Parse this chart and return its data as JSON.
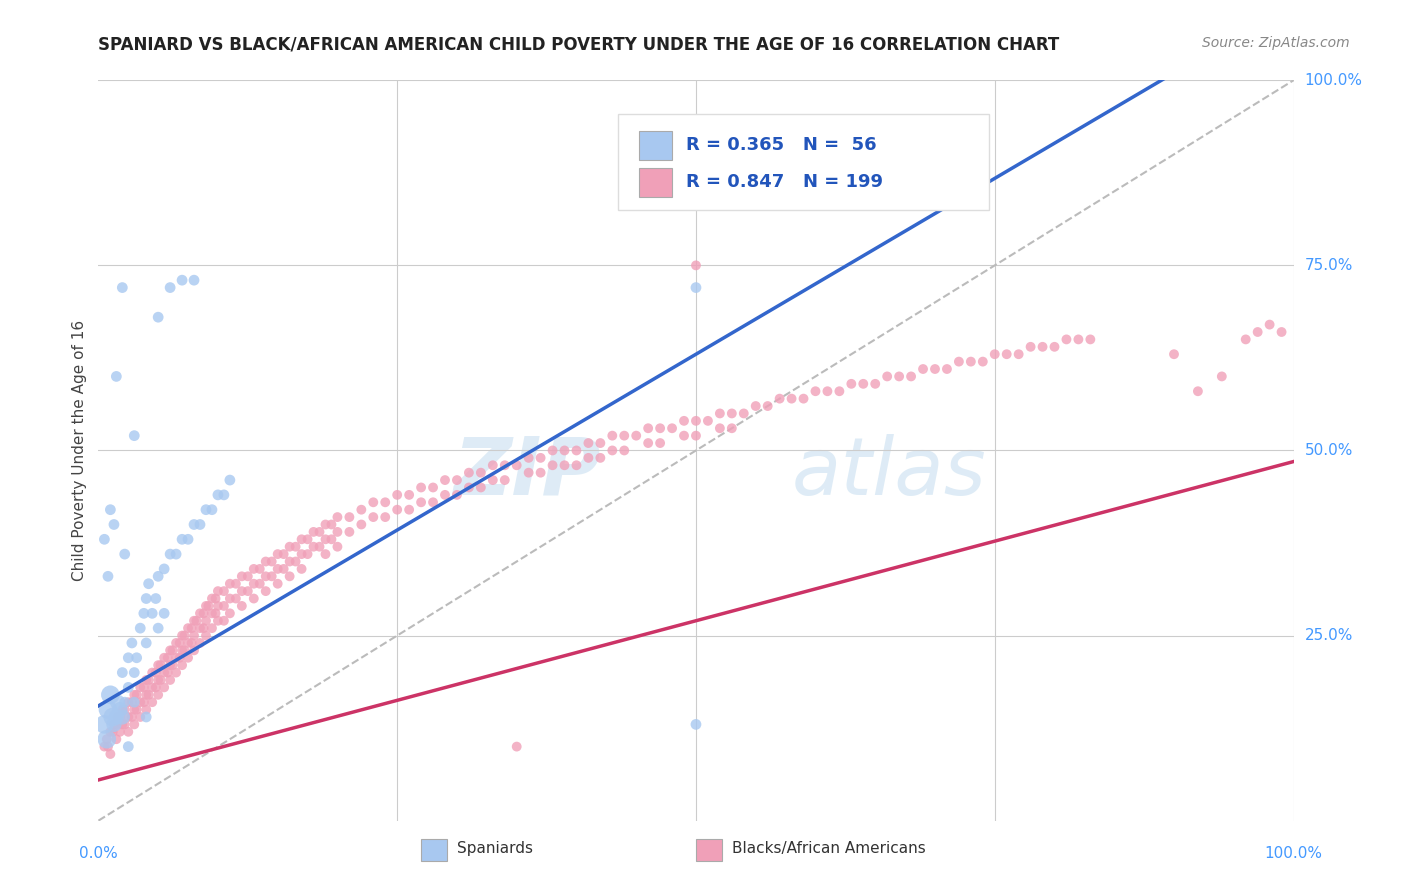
{
  "title": "SPANIARD VS BLACK/AFRICAN AMERICAN CHILD POVERTY UNDER THE AGE OF 16 CORRELATION CHART",
  "source": "Source: ZipAtlas.com",
  "ylabel": "Child Poverty Under the Age of 16",
  "ytick_labels": [
    "25.0%",
    "50.0%",
    "75.0%",
    "100.0%"
  ],
  "ytick_values": [
    0.25,
    0.5,
    0.75,
    1.0
  ],
  "R_spaniard": 0.365,
  "N_spaniard": 56,
  "R_black": 0.847,
  "N_black": 199,
  "watermark_zip": "ZIP",
  "watermark_atlas": "atlas",
  "blue_color": "#a8c8f0",
  "pink_color": "#f0a0b8",
  "blue_line_color": "#3366cc",
  "pink_line_color": "#cc3366",
  "legend_blue_text": "Spaniards",
  "legend_pink_text": "Blacks/African Americans",
  "blue_intercept": 0.155,
  "blue_slope": 0.95,
  "pink_intercept": 0.055,
  "pink_slope": 0.43,
  "spaniard_points": [
    [
      0.005,
      0.13
    ],
    [
      0.007,
      0.11
    ],
    [
      0.008,
      0.15
    ],
    [
      0.01,
      0.17
    ],
    [
      0.012,
      0.14
    ],
    [
      0.013,
      0.13
    ],
    [
      0.015,
      0.14
    ],
    [
      0.016,
      0.16
    ],
    [
      0.018,
      0.15
    ],
    [
      0.02,
      0.14
    ],
    [
      0.02,
      0.2
    ],
    [
      0.022,
      0.16
    ],
    [
      0.025,
      0.18
    ],
    [
      0.025,
      0.22
    ],
    [
      0.028,
      0.24
    ],
    [
      0.03,
      0.2
    ],
    [
      0.03,
      0.16
    ],
    [
      0.032,
      0.22
    ],
    [
      0.035,
      0.26
    ],
    [
      0.038,
      0.28
    ],
    [
      0.04,
      0.3
    ],
    [
      0.04,
      0.24
    ],
    [
      0.042,
      0.32
    ],
    [
      0.045,
      0.28
    ],
    [
      0.048,
      0.3
    ],
    [
      0.05,
      0.33
    ],
    [
      0.05,
      0.26
    ],
    [
      0.055,
      0.34
    ],
    [
      0.055,
      0.28
    ],
    [
      0.06,
      0.36
    ],
    [
      0.065,
      0.36
    ],
    [
      0.07,
      0.38
    ],
    [
      0.075,
      0.38
    ],
    [
      0.08,
      0.4
    ],
    [
      0.085,
      0.4
    ],
    [
      0.09,
      0.42
    ],
    [
      0.095,
      0.42
    ],
    [
      0.1,
      0.44
    ],
    [
      0.105,
      0.44
    ],
    [
      0.11,
      0.46
    ],
    [
      0.015,
      0.6
    ],
    [
      0.03,
      0.52
    ],
    [
      0.05,
      0.68
    ],
    [
      0.02,
      0.72
    ],
    [
      0.06,
      0.72
    ],
    [
      0.07,
      0.73
    ],
    [
      0.08,
      0.73
    ],
    [
      0.005,
      0.38
    ],
    [
      0.01,
      0.42
    ],
    [
      0.013,
      0.4
    ],
    [
      0.022,
      0.36
    ],
    [
      0.008,
      0.33
    ],
    [
      0.04,
      0.14
    ],
    [
      0.025,
      0.1
    ],
    [
      0.5,
      0.72
    ],
    [
      0.5,
      0.13
    ]
  ],
  "black_points": [
    [
      0.005,
      0.1
    ],
    [
      0.007,
      0.11
    ],
    [
      0.008,
      0.1
    ],
    [
      0.01,
      0.12
    ],
    [
      0.01,
      0.09
    ],
    [
      0.012,
      0.12
    ],
    [
      0.013,
      0.13
    ],
    [
      0.015,
      0.13
    ],
    [
      0.015,
      0.11
    ],
    [
      0.016,
      0.14
    ],
    [
      0.018,
      0.14
    ],
    [
      0.018,
      0.12
    ],
    [
      0.02,
      0.15
    ],
    [
      0.02,
      0.13
    ],
    [
      0.022,
      0.15
    ],
    [
      0.022,
      0.13
    ],
    [
      0.025,
      0.16
    ],
    [
      0.025,
      0.14
    ],
    [
      0.025,
      0.12
    ],
    [
      0.028,
      0.16
    ],
    [
      0.028,
      0.14
    ],
    [
      0.03,
      0.17
    ],
    [
      0.03,
      0.15
    ],
    [
      0.03,
      0.13
    ],
    [
      0.032,
      0.17
    ],
    [
      0.032,
      0.15
    ],
    [
      0.035,
      0.18
    ],
    [
      0.035,
      0.16
    ],
    [
      0.035,
      0.14
    ],
    [
      0.038,
      0.18
    ],
    [
      0.038,
      0.16
    ],
    [
      0.04,
      0.19
    ],
    [
      0.04,
      0.17
    ],
    [
      0.04,
      0.15
    ],
    [
      0.042,
      0.19
    ],
    [
      0.042,
      0.17
    ],
    [
      0.045,
      0.2
    ],
    [
      0.045,
      0.18
    ],
    [
      0.045,
      0.16
    ],
    [
      0.048,
      0.2
    ],
    [
      0.048,
      0.18
    ],
    [
      0.05,
      0.21
    ],
    [
      0.05,
      0.19
    ],
    [
      0.05,
      0.17
    ],
    [
      0.052,
      0.21
    ],
    [
      0.052,
      0.19
    ],
    [
      0.055,
      0.22
    ],
    [
      0.055,
      0.2
    ],
    [
      0.055,
      0.18
    ],
    [
      0.058,
      0.22
    ],
    [
      0.058,
      0.2
    ],
    [
      0.06,
      0.23
    ],
    [
      0.06,
      0.21
    ],
    [
      0.06,
      0.19
    ],
    [
      0.062,
      0.23
    ],
    [
      0.062,
      0.21
    ],
    [
      0.065,
      0.24
    ],
    [
      0.065,
      0.22
    ],
    [
      0.065,
      0.2
    ],
    [
      0.068,
      0.24
    ],
    [
      0.068,
      0.22
    ],
    [
      0.07,
      0.25
    ],
    [
      0.07,
      0.23
    ],
    [
      0.07,
      0.21
    ],
    [
      0.072,
      0.25
    ],
    [
      0.072,
      0.23
    ],
    [
      0.075,
      0.26
    ],
    [
      0.075,
      0.24
    ],
    [
      0.075,
      0.22
    ],
    [
      0.078,
      0.26
    ],
    [
      0.078,
      0.24
    ],
    [
      0.08,
      0.27
    ],
    [
      0.08,
      0.25
    ],
    [
      0.08,
      0.23
    ],
    [
      0.082,
      0.27
    ],
    [
      0.085,
      0.28
    ],
    [
      0.085,
      0.26
    ],
    [
      0.085,
      0.24
    ],
    [
      0.088,
      0.28
    ],
    [
      0.088,
      0.26
    ],
    [
      0.09,
      0.29
    ],
    [
      0.09,
      0.27
    ],
    [
      0.09,
      0.25
    ],
    [
      0.092,
      0.29
    ],
    [
      0.095,
      0.3
    ],
    [
      0.095,
      0.28
    ],
    [
      0.095,
      0.26
    ],
    [
      0.098,
      0.3
    ],
    [
      0.098,
      0.28
    ],
    [
      0.1,
      0.31
    ],
    [
      0.1,
      0.29
    ],
    [
      0.1,
      0.27
    ],
    [
      0.105,
      0.31
    ],
    [
      0.105,
      0.29
    ],
    [
      0.105,
      0.27
    ],
    [
      0.11,
      0.32
    ],
    [
      0.11,
      0.3
    ],
    [
      0.11,
      0.28
    ],
    [
      0.115,
      0.32
    ],
    [
      0.115,
      0.3
    ],
    [
      0.12,
      0.33
    ],
    [
      0.12,
      0.31
    ],
    [
      0.12,
      0.29
    ],
    [
      0.125,
      0.33
    ],
    [
      0.125,
      0.31
    ],
    [
      0.13,
      0.34
    ],
    [
      0.13,
      0.32
    ],
    [
      0.13,
      0.3
    ],
    [
      0.135,
      0.34
    ],
    [
      0.135,
      0.32
    ],
    [
      0.14,
      0.35
    ],
    [
      0.14,
      0.33
    ],
    [
      0.14,
      0.31
    ],
    [
      0.145,
      0.35
    ],
    [
      0.145,
      0.33
    ],
    [
      0.15,
      0.36
    ],
    [
      0.15,
      0.34
    ],
    [
      0.15,
      0.32
    ],
    [
      0.155,
      0.36
    ],
    [
      0.155,
      0.34
    ],
    [
      0.16,
      0.37
    ],
    [
      0.16,
      0.35
    ],
    [
      0.16,
      0.33
    ],
    [
      0.165,
      0.37
    ],
    [
      0.165,
      0.35
    ],
    [
      0.17,
      0.38
    ],
    [
      0.17,
      0.36
    ],
    [
      0.17,
      0.34
    ],
    [
      0.175,
      0.38
    ],
    [
      0.175,
      0.36
    ],
    [
      0.18,
      0.39
    ],
    [
      0.18,
      0.37
    ],
    [
      0.185,
      0.39
    ],
    [
      0.185,
      0.37
    ],
    [
      0.19,
      0.4
    ],
    [
      0.19,
      0.38
    ],
    [
      0.19,
      0.36
    ],
    [
      0.195,
      0.4
    ],
    [
      0.195,
      0.38
    ],
    [
      0.2,
      0.41
    ],
    [
      0.2,
      0.39
    ],
    [
      0.2,
      0.37
    ],
    [
      0.21,
      0.41
    ],
    [
      0.21,
      0.39
    ],
    [
      0.22,
      0.42
    ],
    [
      0.22,
      0.4
    ],
    [
      0.23,
      0.43
    ],
    [
      0.23,
      0.41
    ],
    [
      0.24,
      0.43
    ],
    [
      0.24,
      0.41
    ],
    [
      0.25,
      0.44
    ],
    [
      0.25,
      0.42
    ],
    [
      0.26,
      0.44
    ],
    [
      0.26,
      0.42
    ],
    [
      0.27,
      0.45
    ],
    [
      0.27,
      0.43
    ],
    [
      0.28,
      0.45
    ],
    [
      0.28,
      0.43
    ],
    [
      0.29,
      0.46
    ],
    [
      0.29,
      0.44
    ],
    [
      0.3,
      0.46
    ],
    [
      0.3,
      0.44
    ],
    [
      0.31,
      0.47
    ],
    [
      0.31,
      0.45
    ],
    [
      0.32,
      0.47
    ],
    [
      0.32,
      0.45
    ],
    [
      0.33,
      0.48
    ],
    [
      0.33,
      0.46
    ],
    [
      0.34,
      0.48
    ],
    [
      0.34,
      0.46
    ],
    [
      0.35,
      0.48
    ],
    [
      0.36,
      0.49
    ],
    [
      0.36,
      0.47
    ],
    [
      0.37,
      0.49
    ],
    [
      0.37,
      0.47
    ],
    [
      0.38,
      0.5
    ],
    [
      0.38,
      0.48
    ],
    [
      0.39,
      0.5
    ],
    [
      0.39,
      0.48
    ],
    [
      0.4,
      0.5
    ],
    [
      0.4,
      0.48
    ],
    [
      0.41,
      0.51
    ],
    [
      0.41,
      0.49
    ],
    [
      0.42,
      0.51
    ],
    [
      0.42,
      0.49
    ],
    [
      0.43,
      0.52
    ],
    [
      0.43,
      0.5
    ],
    [
      0.44,
      0.52
    ],
    [
      0.44,
      0.5
    ],
    [
      0.45,
      0.52
    ],
    [
      0.46,
      0.53
    ],
    [
      0.46,
      0.51
    ],
    [
      0.47,
      0.53
    ],
    [
      0.47,
      0.51
    ],
    [
      0.48,
      0.53
    ],
    [
      0.49,
      0.54
    ],
    [
      0.49,
      0.52
    ],
    [
      0.5,
      0.54
    ],
    [
      0.5,
      0.52
    ],
    [
      0.51,
      0.54
    ],
    [
      0.52,
      0.55
    ],
    [
      0.52,
      0.53
    ],
    [
      0.53,
      0.55
    ],
    [
      0.53,
      0.53
    ],
    [
      0.54,
      0.55
    ],
    [
      0.55,
      0.56
    ],
    [
      0.56,
      0.56
    ],
    [
      0.57,
      0.57
    ],
    [
      0.58,
      0.57
    ],
    [
      0.59,
      0.57
    ],
    [
      0.6,
      0.58
    ],
    [
      0.61,
      0.58
    ],
    [
      0.62,
      0.58
    ],
    [
      0.63,
      0.59
    ],
    [
      0.64,
      0.59
    ],
    [
      0.65,
      0.59
    ],
    [
      0.66,
      0.6
    ],
    [
      0.67,
      0.6
    ],
    [
      0.68,
      0.6
    ],
    [
      0.69,
      0.61
    ],
    [
      0.7,
      0.61
    ],
    [
      0.71,
      0.61
    ],
    [
      0.72,
      0.62
    ],
    [
      0.73,
      0.62
    ],
    [
      0.74,
      0.62
    ],
    [
      0.75,
      0.63
    ],
    [
      0.76,
      0.63
    ],
    [
      0.77,
      0.63
    ],
    [
      0.78,
      0.64
    ],
    [
      0.79,
      0.64
    ],
    [
      0.8,
      0.64
    ],
    [
      0.81,
      0.65
    ],
    [
      0.82,
      0.65
    ],
    [
      0.83,
      0.65
    ],
    [
      0.9,
      0.63
    ],
    [
      0.92,
      0.58
    ],
    [
      0.94,
      0.6
    ],
    [
      0.96,
      0.65
    ],
    [
      0.97,
      0.66
    ],
    [
      0.98,
      0.67
    ],
    [
      0.99,
      0.66
    ],
    [
      0.5,
      0.75
    ],
    [
      0.35,
      0.1
    ]
  ]
}
